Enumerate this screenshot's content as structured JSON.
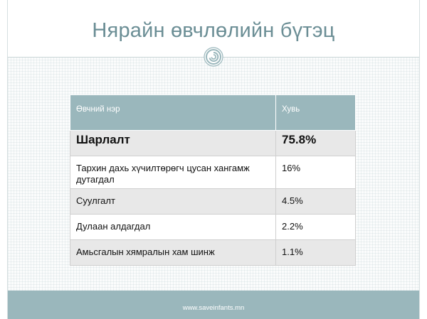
{
  "slide": {
    "title": "Нярайн өвчлөлийн бүтэц",
    "footer": "www.saveinfants.mn",
    "emblem_icon": "spiral-emblem-icon"
  },
  "table": {
    "headers": [
      "Өвчний нэр",
      "Хувь"
    ],
    "rows": [
      {
        "name": "Шарлалт",
        "value": "75.8%"
      },
      {
        "name": "Тархин дахь хүчилтөрөгч цусан хангамж дутагдал",
        "value": "16%"
      },
      {
        "name": "Суулгалт",
        "value": "4.5%"
      },
      {
        "name": "Дулаан алдагдал",
        "value": "2.2%"
      },
      {
        "name": "Амьсгалын хямралын хам шинж",
        "value": "1.1%"
      }
    ]
  },
  "colors": {
    "title_color": "#6b8e95",
    "header_bg": "#9ab7bc",
    "alt_row_bg": "#e8e8e8",
    "footer_bg": "#9ab7bc"
  }
}
